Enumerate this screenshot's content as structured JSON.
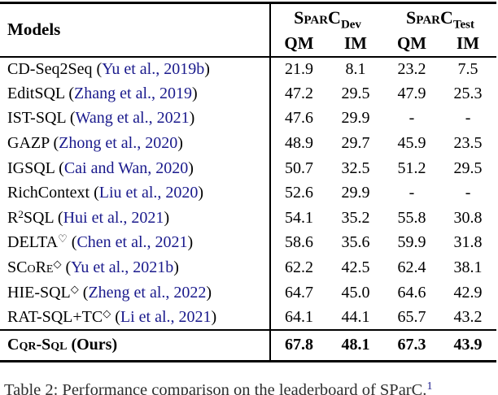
{
  "table": {
    "header": {
      "models_label": "Models",
      "groups": [
        {
          "pre": "S",
          "sc": "par",
          "post": "C",
          "sub": "Dev"
        },
        {
          "pre": "S",
          "sc": "par",
          "post": "C",
          "sub": "Test"
        }
      ],
      "subcols": [
        "QM",
        "IM",
        "QM",
        "IM"
      ]
    },
    "rows": [
      {
        "name": "CD-Seq2Seq",
        "sup": "",
        "post": "",
        "cite": "Yu et al., 2019b",
        "vals": [
          "21.9",
          "8.1",
          "23.2",
          "7.5"
        ]
      },
      {
        "name": "EditSQL",
        "sup": "",
        "post": "",
        "cite": "Zhang et al., 2019",
        "vals": [
          "47.2",
          "29.5",
          "47.9",
          "25.3"
        ]
      },
      {
        "name": "IST-SQL",
        "sup": "",
        "post": "",
        "cite": "Wang et al., 2021",
        "vals": [
          "47.6",
          "29.9",
          "-",
          "-"
        ]
      },
      {
        "name": "GAZP",
        "sup": "",
        "post": "",
        "cite": "Zhong et al., 2020",
        "vals": [
          "48.9",
          "29.7",
          "45.9",
          "23.5"
        ]
      },
      {
        "name": "IGSQL",
        "sup": "",
        "post": "",
        "cite": "Cai and Wan, 2020",
        "vals": [
          "50.7",
          "32.5",
          "51.2",
          "29.5"
        ]
      },
      {
        "name": "RichContext",
        "sup": "",
        "post": "",
        "cite": "Liu et al., 2020",
        "vals": [
          "52.6",
          "29.9",
          "-",
          "-"
        ]
      },
      {
        "name": "R",
        "sup": "2",
        "post": "SQL",
        "cite": "Hui et al., 2021",
        "vals": [
          "54.1",
          "35.2",
          "55.8",
          "30.8"
        ]
      },
      {
        "name": "DELTA",
        "sup": "♡",
        "post": "",
        "cite": "Chen et al., 2021",
        "vals": [
          "58.6",
          "35.6",
          "59.9",
          "31.8"
        ]
      },
      {
        "name": "SCoRe",
        "sc": true,
        "sup": "◇",
        "post": "",
        "cite": "Yu et al., 2021b",
        "vals": [
          "62.2",
          "42.5",
          "62.4",
          "38.1"
        ]
      },
      {
        "name": "HIE-SQL",
        "sup": "◇",
        "post": "",
        "cite": "Zheng et al., 2022",
        "vals": [
          "64.7",
          "45.0",
          "64.6",
          "42.9"
        ]
      },
      {
        "name": "RAT-SQL+TC",
        "sup": "◇",
        "post": "",
        "cite": "Li et al., 2021",
        "vals": [
          "64.1",
          "44.1",
          "65.7",
          "43.2"
        ]
      }
    ],
    "final_row": {
      "name": "Cqr-Sql",
      "suffix": " (Ours)",
      "vals": [
        "67.8",
        "48.1",
        "67.3",
        "43.9"
      ]
    }
  },
  "caption": {
    "visible_text": "Table 2: Performance comparison on the leaderboard of SParC.",
    "footnote_mark": "1"
  },
  "colors": {
    "citation_blue": "#1a1a8c",
    "rule_black": "#000000"
  }
}
